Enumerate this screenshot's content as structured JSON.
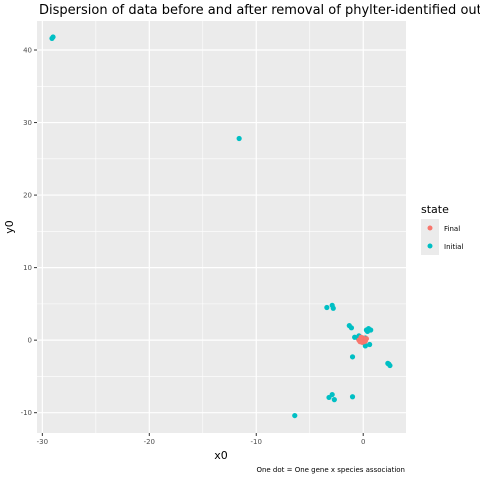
{
  "chart_data": {
    "type": "scatter",
    "title": "Dispersion of data before and after removal of phylter-identified outliers",
    "xlabel": "x0",
    "ylabel": "y0",
    "caption": "One dot = One gene x species association",
    "xlim": [
      -30.5,
      4
    ],
    "ylim": [
      -12.8,
      44
    ],
    "x_ticks": [
      -30,
      -20,
      -10,
      0
    ],
    "x_tick_labels": [
      "-30",
      "-20",
      "-10",
      "0"
    ],
    "y_ticks": [
      -10,
      0,
      10,
      20,
      30,
      40
    ],
    "y_tick_labels": [
      "-10",
      "0",
      "10",
      "20",
      "30",
      "40"
    ],
    "grid": true,
    "legend": {
      "title": "state",
      "position": "right",
      "entries": [
        {
          "label": "Final",
          "color": "#F8766D"
        },
        {
          "label": "Initial",
          "color": "#00BFC4"
        }
      ]
    },
    "series": [
      {
        "name": "Initial",
        "color": "#00BFC4",
        "points": [
          [
            -29,
            41.8
          ],
          [
            -29.1,
            41.6
          ],
          [
            -11.6,
            27.8
          ],
          [
            -3.4,
            4.5
          ],
          [
            -2.9,
            4.8
          ],
          [
            -2.8,
            4.4
          ],
          [
            -1.3,
            2.0
          ],
          [
            -1.1,
            1.7
          ],
          [
            -0.8,
            0.4
          ],
          [
            -0.4,
            0.6
          ],
          [
            0.3,
            1.4
          ],
          [
            0.5,
            1.6
          ],
          [
            0.7,
            1.4
          ],
          [
            0.4,
            1.2
          ],
          [
            0.6,
            -0.6
          ],
          [
            0.2,
            -0.8
          ],
          [
            -1.0,
            -2.3
          ],
          [
            2.3,
            -3.2
          ],
          [
            2.5,
            -3.5
          ],
          [
            2.4,
            -3.3
          ],
          [
            -3.2,
            -7.9
          ],
          [
            -2.9,
            -7.5
          ],
          [
            -2.7,
            -8.2
          ],
          [
            -1.0,
            -7.8
          ],
          [
            -6.4,
            -10.4
          ],
          [
            -0.1,
            0.2
          ],
          [
            -0.3,
            -0.1
          ],
          [
            0.2,
            0.3
          ],
          [
            0.1,
            -0.4
          ],
          [
            -0.5,
            0.3
          ]
        ]
      },
      {
        "name": "Final",
        "color": "#F8766D",
        "points": [
          [
            -0.2,
            0.1
          ],
          [
            0.1,
            0.0
          ],
          [
            -0.3,
            -0.2
          ],
          [
            0.0,
            0.3
          ],
          [
            0.2,
            -0.1
          ],
          [
            -0.1,
            -0.3
          ],
          [
            0.3,
            0.2
          ],
          [
            -0.4,
            0.0
          ],
          [
            0.1,
            -0.2
          ],
          [
            -0.2,
            0.4
          ]
        ]
      }
    ]
  }
}
